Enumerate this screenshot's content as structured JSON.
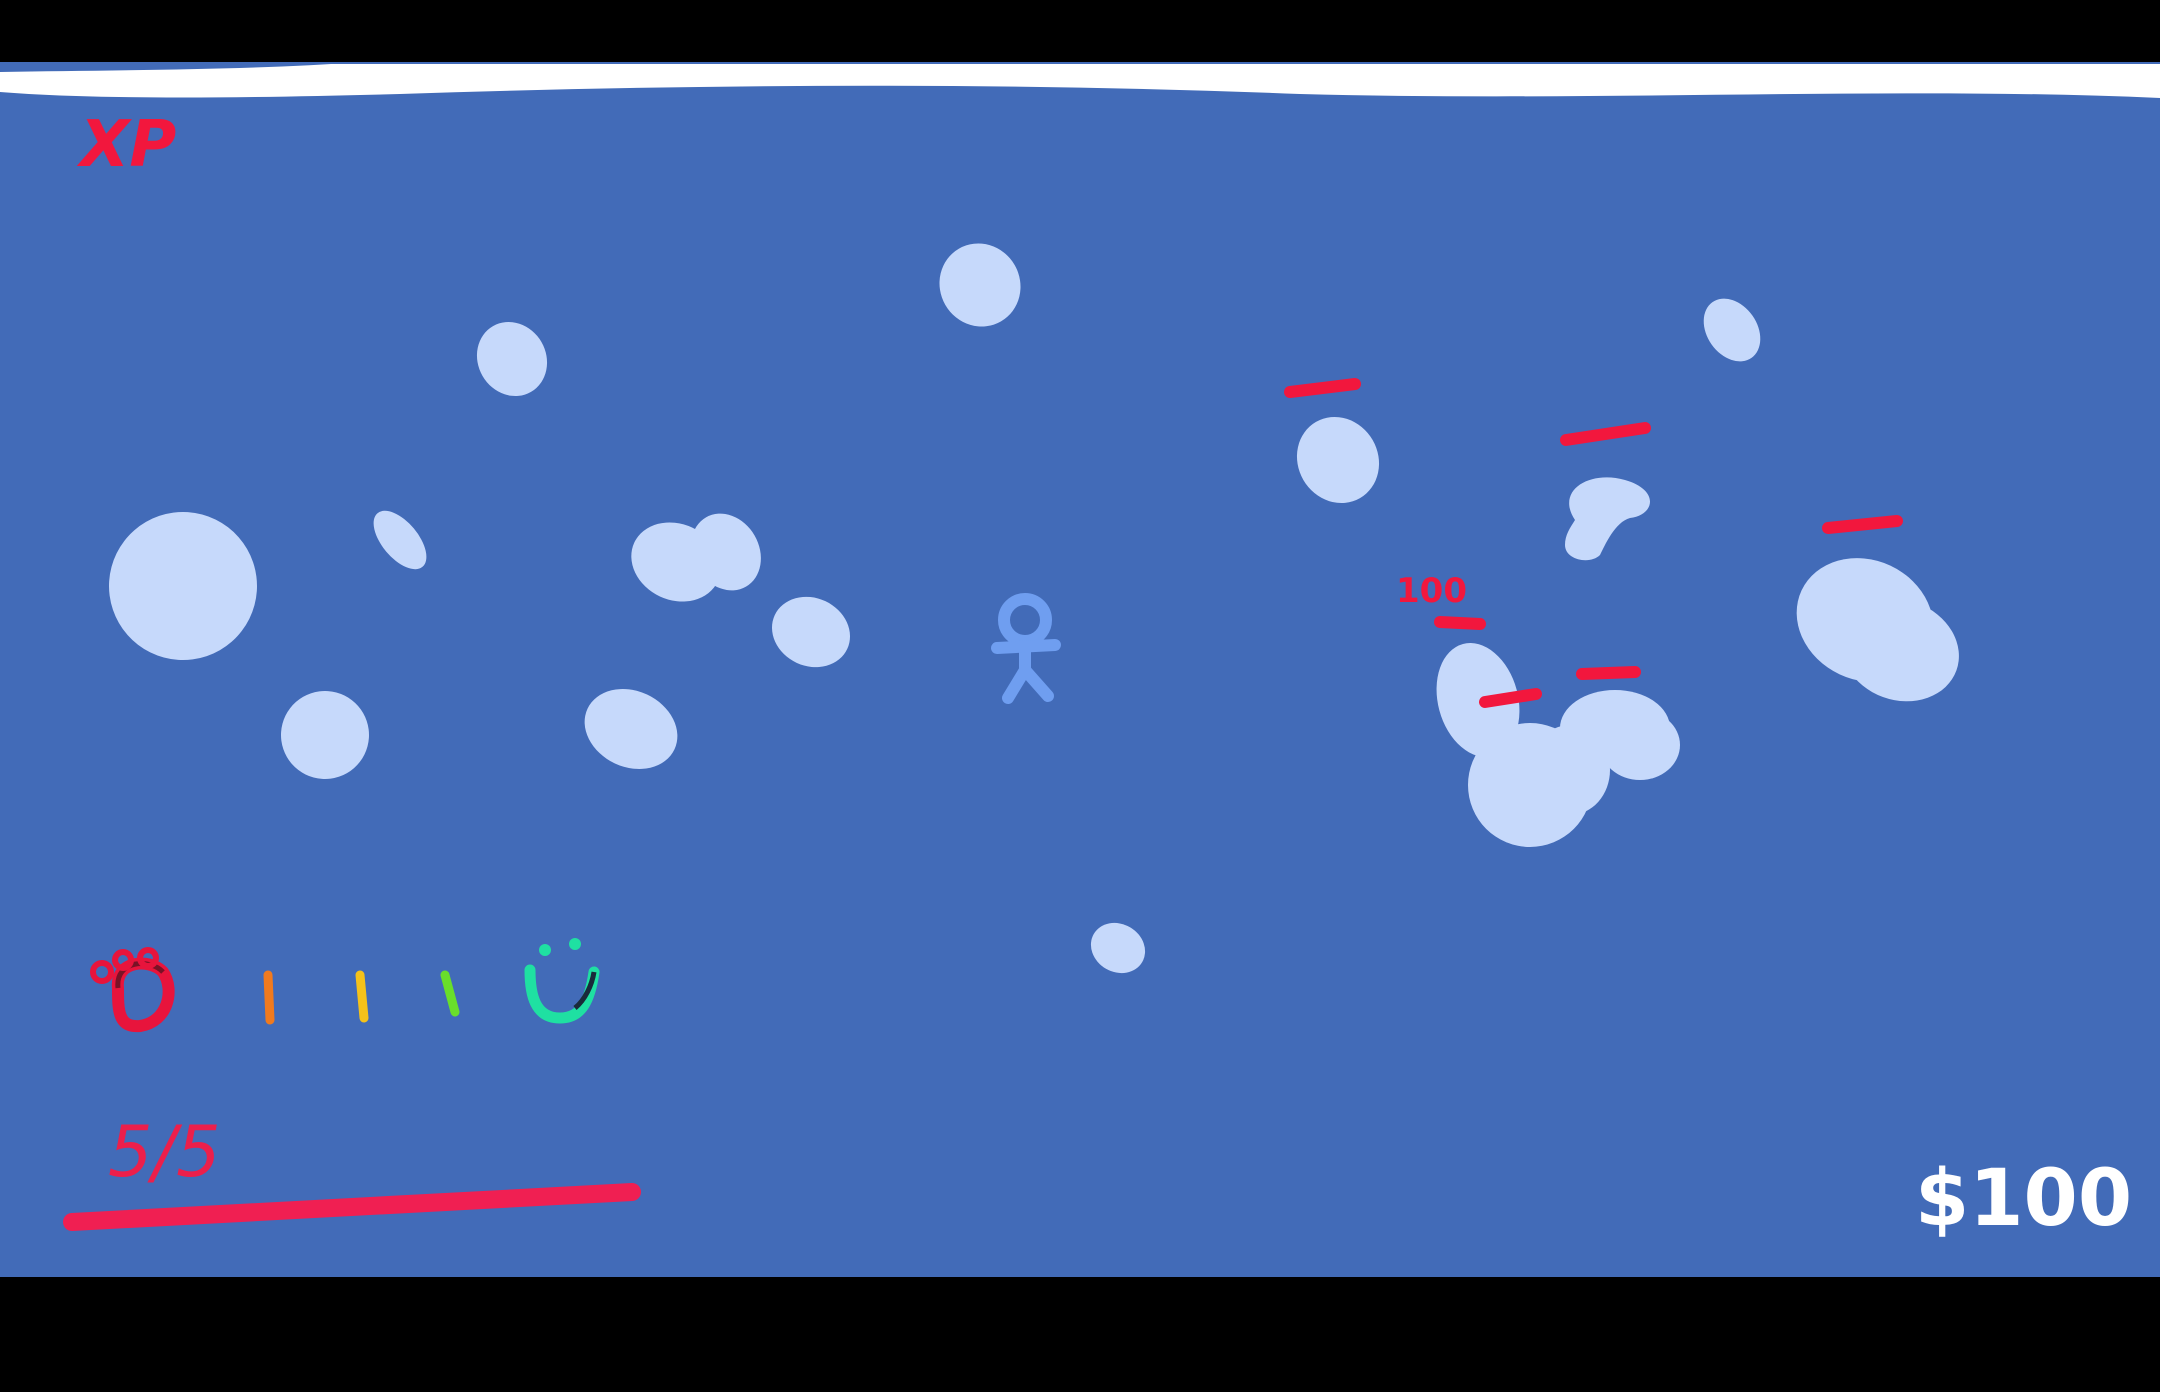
{
  "hud": {
    "xp_label": "XP",
    "health_text": "5/5",
    "health_fraction": 1.0,
    "money_text": "$100",
    "damage_popup_text": "100",
    "mood_scale_length": 5
  },
  "colors": {
    "letterbox": "#000000",
    "water": "#426bb8",
    "top_strip": "#ffffff",
    "bubble": "#c6d9fb",
    "player": "#6f9ef0",
    "enemy_health_bar": "#f2173d",
    "xp_text": "#f2173d",
    "health_text": "#ec1f4b",
    "health_bar": "#f01f52",
    "money_text": "#ffffff",
    "mood_sad": "#e8143c",
    "mood_orange": "#f07a1e",
    "mood_yellow": "#f5c21a",
    "mood_green": "#69df2a",
    "mood_happy": "#1fe0a2"
  },
  "icons": {
    "player": "stick-figure-player-icon",
    "sad_face": "sad-face-icon",
    "happy_face": "happy-face-icon"
  }
}
